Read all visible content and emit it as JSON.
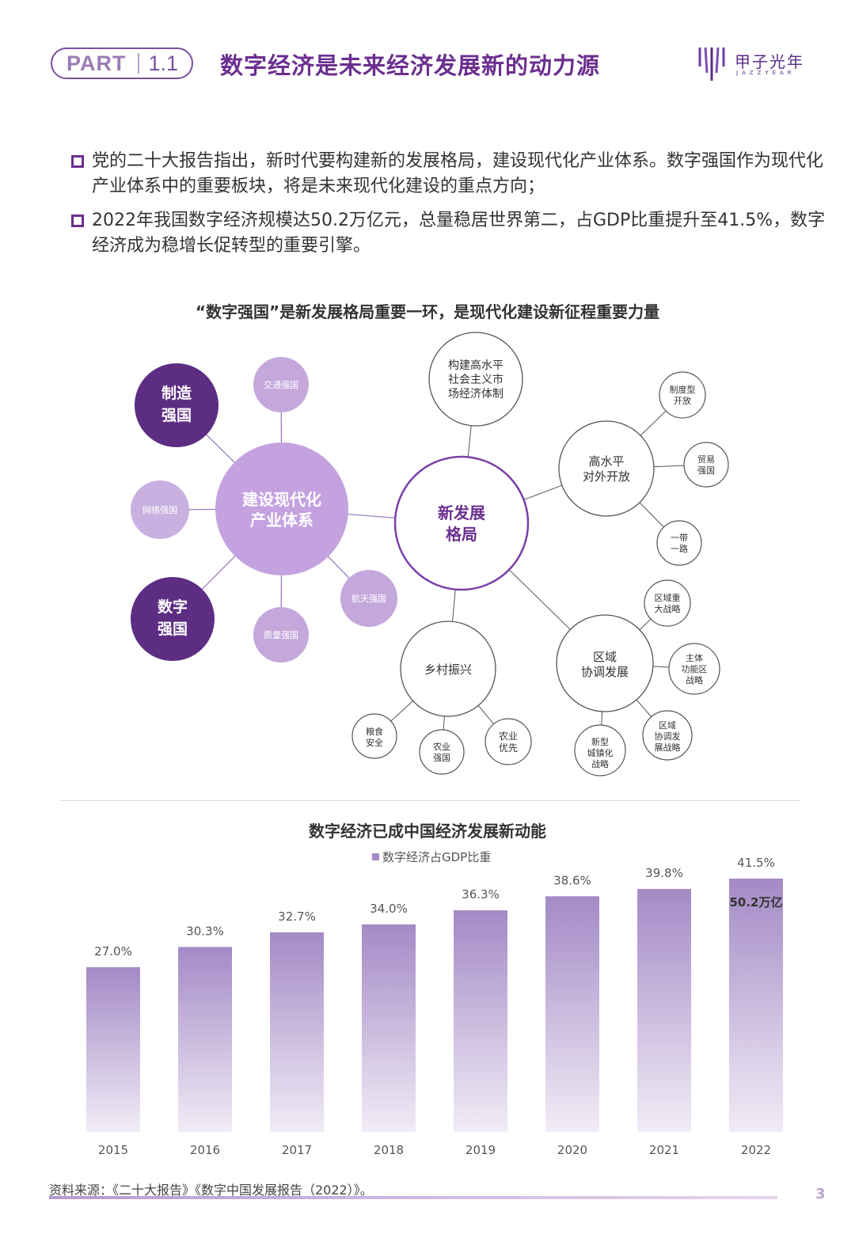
{
  "header": {
    "part_label": "PART",
    "part_number": "1.1",
    "title": "数字经济是未来经济发展新的动力源",
    "logo_name": "甲子光年",
    "logo_sub": "JAZZYEAR"
  },
  "bullets": [
    "党的二十大报告指出，新时代要构建新的发展格局，建设现代化产业体系。数字强国作为现代化产业体系中的重要板块，将是未来现代化建设的重点方向；",
    "2022年我国数字经济规模达50.2万亿元，总量稳居世界第二，占GDP比重提升至41.5%，数字经济成为稳增长促转型的重要引擎。"
  ],
  "diagram": {
    "title": "“数字强国”是新发展格局重要一环，是现代化建设新征程重要力量",
    "hub_left": "建设现代化产业体系",
    "hub_center": "新发展格局",
    "left_nodes": {
      "manufacturing": "制造强国",
      "transport": "交通强国",
      "network": "网络强国",
      "aerospace": "航天强国",
      "digital": "数字强国",
      "quality": "质量强国"
    },
    "market": "构建高水平社会主义市场经济体制",
    "opening": "高水平对外开放",
    "opening_children": [
      "制度型开放",
      "贸易强国",
      "一带一路"
    ],
    "rural": "乡村振兴",
    "rural_children": [
      "粮食安全",
      "农业强国",
      "农业优先"
    ],
    "regional": "区域协调发展",
    "regional_children": [
      "区域重大战略",
      "主体功能区战略",
      "区域协调发展战略",
      "新型城镇化战略"
    ]
  },
  "chart_section_title": "数字经济已成中国经济发展新动能",
  "chart_data": {
    "type": "bar",
    "title": "数字经济已成中国经济发展新动能",
    "categories": [
      "2015",
      "2016",
      "2017",
      "2018",
      "2019",
      "2020",
      "2021",
      "2022"
    ],
    "series": [
      {
        "name": "数字经济占GDP比重",
        "values": [
          27.0,
          30.3,
          32.7,
          34.0,
          36.3,
          38.6,
          39.8,
          41.5
        ]
      }
    ],
    "data_labels": [
      "27.0%",
      "30.3%",
      "32.7%",
      "34.0%",
      "36.3%",
      "38.6%",
      "39.8%",
      "41.5%"
    ],
    "annotation": "50.2万亿",
    "ylim": [
      0,
      41.5
    ],
    "legend_position": "top",
    "grid": false,
    "bar_color_top": "#a48ac6",
    "bar_color_bottom": "#f1ecf6"
  },
  "source": "资料来源：《二十大报告》《数字中国发展报告（2022）》。",
  "page_number": "3",
  "colors": {
    "accent": "#6b2f8f",
    "dark_node": "#5d2d83",
    "light_node": "#c4a8dc",
    "mid_node": "#b995d9"
  }
}
